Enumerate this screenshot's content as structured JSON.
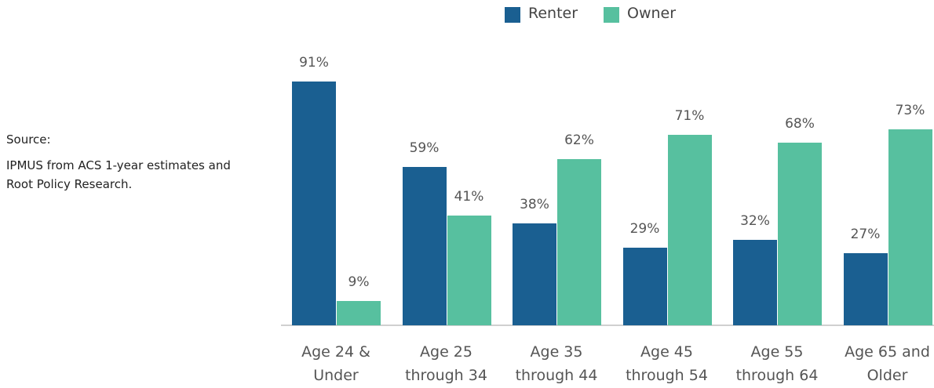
{
  "chart_data": {
    "type": "bar",
    "source_label": "Source:",
    "source": "IPMUS from ACS 1-year estimates and Root Policy Research.",
    "categories": [
      "Age 24 & Under",
      "Age 25 through 34",
      "Age 35 through 44",
      "Age 45 through 54",
      "Age 55 through 64",
      "Age 65 and Older"
    ],
    "series": [
      {
        "name": "Renter",
        "color": "#1a5f91",
        "values": [
          91,
          59,
          38,
          29,
          32,
          27
        ],
        "value_labels": [
          "91%",
          "59%",
          "38%",
          "29%",
          "32%",
          "27%"
        ]
      },
      {
        "name": "Owner",
        "color": "#57c09f",
        "values": [
          9,
          41,
          62,
          71,
          68,
          73
        ],
        "value_labels": [
          "9%",
          "41%",
          "62%",
          "71%",
          "68%",
          "73%"
        ]
      }
    ],
    "legend": "top"
  }
}
